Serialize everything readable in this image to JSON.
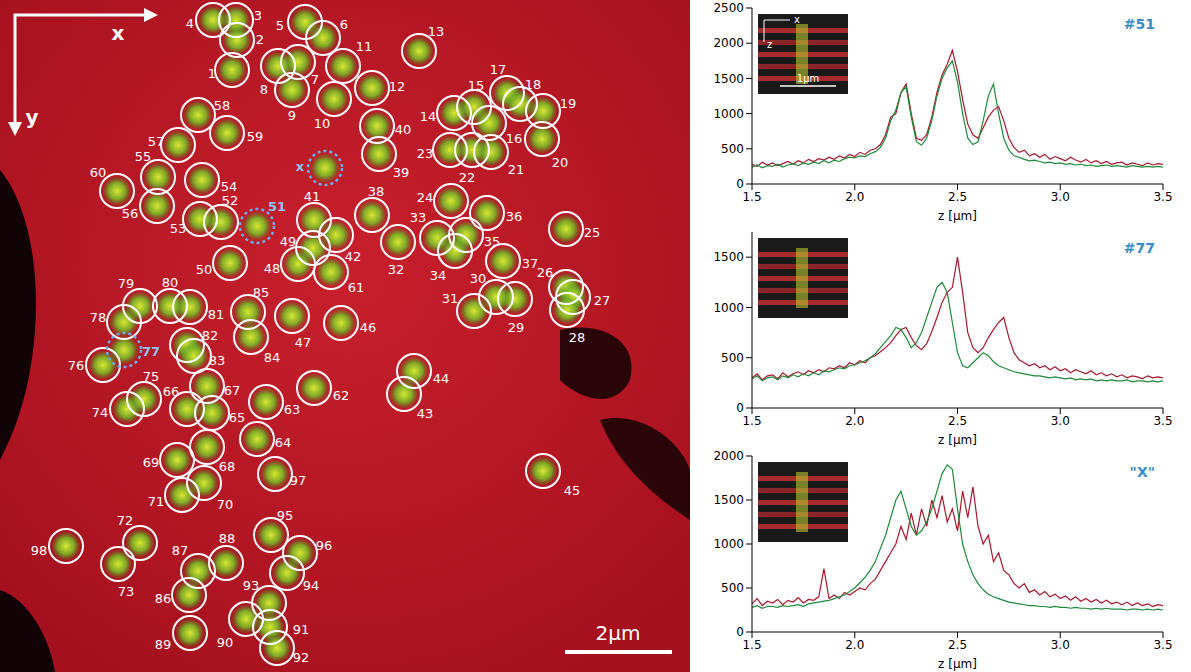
{
  "image": {
    "axis_labels": [
      "x",
      "y"
    ],
    "scale_bar": "2µm",
    "spots": [
      "1",
      "2",
      "3",
      "4",
      "5",
      "6",
      "7",
      "8",
      "9",
      "10",
      "11",
      "12",
      "13",
      "14",
      "15",
      "16",
      "17",
      "18",
      "19",
      "20",
      "21",
      "22",
      "23",
      "24",
      "25",
      "26",
      "27",
      "28",
      "29",
      "30",
      "31",
      "32",
      "33",
      "34",
      "35",
      "36",
      "37",
      "38",
      "39",
      "40",
      "41",
      "42",
      "43",
      "44",
      "45",
      "46",
      "47",
      "48",
      "49",
      "50",
      "52",
      "53",
      "54",
      "55",
      "56",
      "57",
      "58",
      "59",
      "60",
      "61",
      "62",
      "63",
      "64",
      "65",
      "66",
      "67",
      "68",
      "69",
      "70",
      "71",
      "72",
      "73",
      "74",
      "75",
      "76",
      "78",
      "79",
      "80",
      "81",
      "82",
      "83",
      "84",
      "85",
      "86",
      "87",
      "88",
      "89",
      "90",
      "91",
      "92",
      "93",
      "94",
      "95",
      "96",
      "97",
      "98"
    ],
    "marked_spots": [
      "x",
      "51",
      "77"
    ]
  },
  "chart_data": [
    {
      "type": "line",
      "title": "#51",
      "x_label": "z [µm]",
      "inset": {
        "x": "x",
        "z": "z",
        "scale_bar": "1µm"
      },
      "x": [
        1.5,
        1.525,
        1.55,
        1.575,
        1.6,
        1.625,
        1.65,
        1.675,
        1.7,
        1.725,
        1.75,
        1.775,
        1.8,
        1.825,
        1.85,
        1.875,
        1.9,
        1.925,
        1.95,
        1.975,
        2,
        2.025,
        2.05,
        2.075,
        2.1,
        2.125,
        2.15,
        2.175,
        2.2,
        2.225,
        2.25,
        2.275,
        2.3,
        2.325,
        2.35,
        2.375,
        2.4,
        2.425,
        2.45,
        2.475,
        2.5,
        2.525,
        2.55,
        2.575,
        2.6,
        2.625,
        2.65,
        2.675,
        2.7,
        2.725,
        2.75,
        2.775,
        2.8,
        2.825,
        2.85,
        2.875,
        2.9,
        2.925,
        2.95,
        2.975,
        3,
        3.025,
        3.05,
        3.075,
        3.1,
        3.125,
        3.15,
        3.175,
        3.2,
        3.225,
        3.25,
        3.275,
        3.3,
        3.325,
        3.35,
        3.375,
        3.4,
        3.425,
        3.45,
        3.475,
        3.5
      ],
      "xlim": [
        1.5,
        3.5
      ],
      "xticks": [
        1.5,
        {
          "value": 2,
          "label": "2.0"
        },
        2.5,
        {
          "value": 3,
          "label": "3.0"
        },
        3.5
      ],
      "ylim": [
        0,
        2500
      ],
      "yticks": [
        0,
        500,
        1000,
        1500,
        2000,
        2500
      ],
      "series": [
        {
          "color": "#a8182c",
          "values": [
            280,
            250,
            310,
            270,
            300,
            260,
            290,
            320,
            280,
            330,
            300,
            350,
            320,
            360,
            340,
            380,
            350,
            400,
            370,
            420,
            390,
            450,
            420,
            480,
            500,
            560,
            700,
            950,
            1000,
            1300,
            1420,
            1000,
            650,
            620,
            700,
            950,
            1300,
            1550,
            1700,
            1900,
            1600,
            1200,
            850,
            700,
            650,
            800,
            950,
            1050,
            1100,
            900,
            650,
            520,
            450,
            480,
            400,
            430,
            380,
            420,
            350,
            390,
            360,
            330,
            380,
            340,
            310,
            350,
            300,
            330,
            290,
            320,
            280,
            300,
            310,
            270,
            300,
            280,
            260,
            300,
            270,
            290,
            280
          ]
        },
        {
          "color": "#1e8a3a",
          "values": [
            240,
            270,
            230,
            260,
            250,
            280,
            240,
            270,
            290,
            260,
            300,
            280,
            310,
            290,
            330,
            300,
            340,
            320,
            360,
            380,
            370,
            400,
            390,
            430,
            460,
            520,
            650,
            900,
            1050,
            1300,
            1380,
            950,
            600,
            550,
            650,
            900,
            1250,
            1500,
            1650,
            1750,
            1450,
            1000,
            650,
            560,
            600,
            900,
            1250,
            1420,
            1000,
            650,
            480,
            400,
            380,
            350,
            330,
            340,
            320,
            300,
            310,
            290,
            300,
            280,
            290,
            270,
            280,
            260,
            270,
            250,
            260,
            270,
            250,
            260,
            250,
            240,
            260,
            250,
            240,
            250,
            240,
            250,
            240
          ]
        }
      ]
    },
    {
      "type": "line",
      "title": "#77",
      "x_label": "z [µm]",
      "x": [
        1.5,
        1.525,
        1.55,
        1.575,
        1.6,
        1.625,
        1.65,
        1.675,
        1.7,
        1.725,
        1.75,
        1.775,
        1.8,
        1.825,
        1.85,
        1.875,
        1.9,
        1.925,
        1.95,
        1.975,
        2,
        2.025,
        2.05,
        2.075,
        2.1,
        2.125,
        2.15,
        2.175,
        2.2,
        2.225,
        2.25,
        2.275,
        2.3,
        2.325,
        2.35,
        2.375,
        2.4,
        2.425,
        2.45,
        2.475,
        2.5,
        2.525,
        2.55,
        2.575,
        2.6,
        2.625,
        2.65,
        2.675,
        2.7,
        2.725,
        2.75,
        2.775,
        2.8,
        2.825,
        2.85,
        2.875,
        2.9,
        2.925,
        2.95,
        2.975,
        3,
        3.025,
        3.05,
        3.075,
        3.1,
        3.125,
        3.15,
        3.175,
        3.2,
        3.225,
        3.25,
        3.275,
        3.3,
        3.325,
        3.35,
        3.375,
        3.4,
        3.425,
        3.45,
        3.475,
        3.5
      ],
      "xlim": [
        1.5,
        3.5
      ],
      "xticks": [
        1.5,
        {
          "value": 2,
          "label": "2.0"
        },
        2.5,
        {
          "value": 3,
          "label": "3.0"
        },
        3.5
      ],
      "ylim": [
        0,
        1750
      ],
      "yticks": [
        0,
        500,
        1000,
        1500
      ],
      "series": [
        {
          "color": "#a8182c",
          "values": [
            300,
            340,
            280,
            320,
            330,
            290,
            350,
            310,
            340,
            360,
            330,
            370,
            350,
            380,
            360,
            400,
            390,
            420,
            400,
            450,
            430,
            470,
            450,
            500,
            520,
            560,
            600,
            650,
            720,
            780,
            800,
            700,
            620,
            580,
            640,
            760,
            900,
            1050,
            1150,
            1200,
            1500,
            1150,
            750,
            600,
            550,
            600,
            700,
            780,
            850,
            900,
            700,
            550,
            480,
            450,
            420,
            440,
            400,
            420,
            380,
            410,
            370,
            390,
            350,
            380,
            360,
            340,
            370,
            330,
            350,
            320,
            340,
            310,
            330,
            300,
            320,
            310,
            290,
            320,
            300,
            310,
            300
          ]
        },
        {
          "color": "#1e8a3a",
          "values": [
            290,
            320,
            270,
            300,
            310,
            280,
            320,
            300,
            330,
            310,
            340,
            320,
            350,
            330,
            370,
            360,
            380,
            400,
            390,
            420,
            430,
            450,
            470,
            500,
            540,
            600,
            660,
            720,
            800,
            780,
            700,
            600,
            650,
            750,
            900,
            1050,
            1200,
            1250,
            1150,
            850,
            550,
            420,
            400,
            450,
            500,
            550,
            520,
            460,
            420,
            400,
            380,
            360,
            350,
            340,
            330,
            320,
            320,
            310,
            300,
            310,
            300,
            290,
            300,
            280,
            290,
            280,
            290,
            270,
            280,
            270,
            280,
            270,
            270,
            280,
            260,
            270,
            270,
            260,
            270,
            260,
            270
          ]
        }
      ]
    },
    {
      "type": "line",
      "title": "\"X\"",
      "x_label": "z [µm]",
      "x": [
        1.5,
        1.525,
        1.55,
        1.575,
        1.6,
        1.625,
        1.65,
        1.675,
        1.7,
        1.725,
        1.75,
        1.775,
        1.8,
        1.825,
        1.85,
        1.875,
        1.9,
        1.925,
        1.95,
        1.975,
        2,
        2.025,
        2.05,
        2.075,
        2.1,
        2.125,
        2.15,
        2.175,
        2.2,
        2.225,
        2.25,
        2.275,
        2.3,
        2.325,
        2.35,
        2.375,
        2.4,
        2.425,
        2.45,
        2.475,
        2.5,
        2.525,
        2.55,
        2.575,
        2.6,
        2.625,
        2.65,
        2.675,
        2.7,
        2.725,
        2.75,
        2.775,
        2.8,
        2.825,
        2.85,
        2.875,
        2.9,
        2.925,
        2.95,
        2.975,
        3,
        3.025,
        3.05,
        3.075,
        3.1,
        3.125,
        3.15,
        3.175,
        3.2,
        3.225,
        3.25,
        3.275,
        3.3,
        3.325,
        3.35,
        3.375,
        3.4,
        3.425,
        3.45,
        3.475,
        3.5
      ],
      "xlim": [
        1.5,
        3.5
      ],
      "xticks": [
        1.5,
        {
          "value": 2,
          "label": "2.0"
        },
        2.5,
        {
          "value": 3,
          "label": "3.0"
        },
        3.5
      ],
      "ylim": [
        0,
        2000
      ],
      "yticks": [
        0,
        500,
        1000,
        1500,
        2000
      ],
      "series": [
        {
          "color": "#a8182c",
          "values": [
            320,
            380,
            300,
            350,
            330,
            370,
            310,
            360,
            340,
            390,
            330,
            370,
            360,
            400,
            720,
            380,
            420,
            380,
            450,
            420,
            460,
            500,
            480,
            550,
            600,
            700,
            800,
            900,
            1000,
            1200,
            1050,
            1350,
            1100,
            1400,
            1200,
            1500,
            1300,
            1550,
            1250,
            1400,
            1150,
            1600,
            1300,
            1650,
            1200,
            1000,
            1100,
            800,
            900,
            700,
            650,
            550,
            500,
            550,
            450,
            480,
            420,
            460,
            400,
            430,
            380,
            410,
            360,
            400,
            350,
            380,
            340,
            370,
            330,
            360,
            320,
            340,
            310,
            340,
            300,
            330,
            300,
            320,
            290,
            310,
            300
          ]
        },
        {
          "color": "#1e8a3a",
          "values": [
            280,
            300,
            270,
            290,
            290,
            280,
            300,
            290,
            300,
            310,
            290,
            320,
            330,
            340,
            350,
            360,
            380,
            400,
            420,
            460,
            500,
            560,
            620,
            700,
            800,
            950,
            1100,
            1300,
            1500,
            1600,
            1400,
            1200,
            1100,
            1150,
            1250,
            1400,
            1600,
            1800,
            1900,
            1850,
            1400,
            1000,
            800,
            650,
            550,
            480,
            430,
            400,
            380,
            360,
            340,
            330,
            320,
            310,
            300,
            300,
            290,
            290,
            280,
            290,
            280,
            280,
            270,
            280,
            270,
            270,
            260,
            270,
            260,
            270,
            260,
            260,
            260,
            250,
            260,
            260,
            250,
            260,
            250,
            260,
            250
          ]
        }
      ]
    }
  ]
}
